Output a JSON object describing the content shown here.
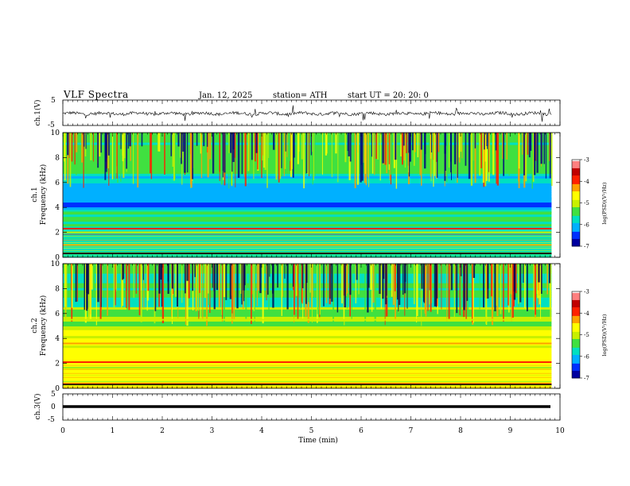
{
  "header": {
    "title": "VLF  Spectra",
    "date": "Jan.  12,  2025",
    "station": "station= ATH",
    "start_ut": "start  UT  =   20: 20: 0"
  },
  "chart_data": [
    {
      "type": "line",
      "panel": "ch1-waveform",
      "ylabel": "ch.1(V)",
      "ylim": [
        -5,
        5
      ],
      "yticks": [
        "5",
        "-5"
      ],
      "x_range_min": [
        0,
        9.83
      ],
      "description_values_v": [
        0.2,
        -0.4,
        0.3,
        -0.1,
        0.5,
        -0.6,
        0.1,
        0.3,
        -0.3,
        0.2
      ]
    },
    {
      "type": "heatmap",
      "panel": "ch1-spectrogram",
      "ylabel_lines": [
        "ch.1",
        "Frequency  (kHz)"
      ],
      "ylim": [
        0,
        10
      ],
      "yticks": [
        "0",
        "2",
        "4",
        "6",
        "8",
        "10"
      ],
      "x_range_min": [
        0,
        9.83
      ],
      "colorbar": {
        "label": "log(PSD)(V²/Hz)",
        "ticks": [
          "-3",
          "-4",
          "-5",
          "-6",
          "-7"
        ],
        "range": [
          -7,
          -3
        ]
      },
      "bands_khz": [
        {
          "f": 0.3,
          "level": -3.6
        },
        {
          "f": 1.0,
          "level": -4.4
        },
        {
          "f": 2.0,
          "level": -4.9
        },
        {
          "f": 2.3,
          "level": -3.9
        },
        {
          "f": 3.6,
          "level": -5.2
        },
        {
          "f": 4.7,
          "level": -6.1
        }
      ]
    },
    {
      "type": "heatmap",
      "panel": "ch2-spectrogram",
      "ylabel_lines": [
        "ch.2",
        "Frequency  (kHz)"
      ],
      "ylim": [
        0,
        10
      ],
      "yticks": [
        "0",
        "2",
        "4",
        "6",
        "8",
        "10"
      ],
      "x_range_min": [
        0,
        9.83
      ],
      "colorbar": {
        "label": "log(PSD)(V²/Hz)",
        "ticks": [
          "-3",
          "-4",
          "-5",
          "-6",
          "-7"
        ],
        "range": [
          -7,
          -3
        ]
      },
      "bands_khz": [
        {
          "f": 0.3,
          "level": -3.5
        },
        {
          "f": 2.1,
          "level": -3.8
        },
        {
          "f": 3.6,
          "level": -4.1
        },
        {
          "f": 4.6,
          "level": -4.5
        },
        {
          "f": 5.5,
          "level": -5.0
        }
      ]
    },
    {
      "type": "line",
      "panel": "ch3-waveform",
      "ylabel": "ch.3(V)",
      "ylim": [
        -5,
        5
      ],
      "yticks": [
        "5",
        "0",
        "-5"
      ],
      "x_range_min": [
        0,
        9.83
      ],
      "values_v": [
        0,
        0
      ]
    }
  ],
  "xaxis": {
    "label": "Time  (min)",
    "ticks": [
      "0",
      "1",
      "2",
      "3",
      "4",
      "5",
      "6",
      "7",
      "8",
      "9",
      "10"
    ],
    "xlim": [
      0,
      10
    ]
  },
  "colors": {
    "colormap": [
      "#000000",
      "#0000a0",
      "#0030ff",
      "#00b0ff",
      "#00e0c0",
      "#40e040",
      "#c8f000",
      "#ffff00",
      "#ffa000",
      "#ff2000",
      "#c00000",
      "#ff8080",
      "#ffffff"
    ]
  }
}
